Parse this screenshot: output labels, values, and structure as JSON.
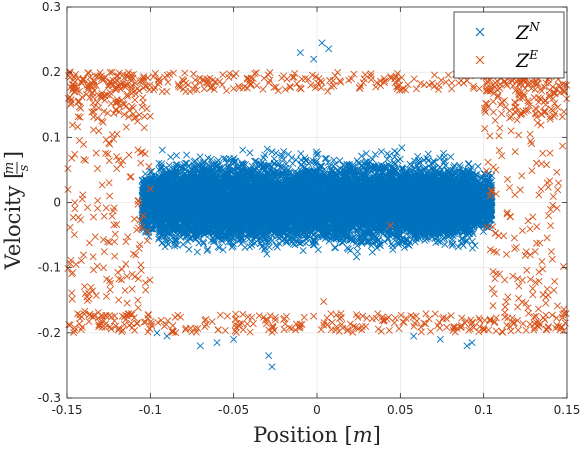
{
  "chart_data": {
    "type": "scatter",
    "title": "",
    "xlabel": "Position [m]",
    "xlabel_parts": {
      "text": "Position ",
      "open": "[",
      "unit": "m",
      "close": "]"
    },
    "ylabel": "Velocity [m/s]",
    "ylabel_parts": {
      "text": "Velocity ",
      "open": "[",
      "num": "m",
      "den": "s",
      "close": "]"
    },
    "xlim": [
      -0.15,
      0.15
    ],
    "ylim": [
      -0.3,
      0.3
    ],
    "xticks": [
      -0.15,
      -0.1,
      -0.05,
      0,
      0.05,
      0.1,
      0.15
    ],
    "xtick_labels": [
      "-0.15",
      "-0.1",
      "-0.05",
      "0",
      "0.05",
      "0.1",
      "0.15"
    ],
    "yticks": [
      -0.3,
      -0.2,
      -0.1,
      0,
      0.1,
      0.2,
      0.3
    ],
    "ytick_labels": [
      "-0.3",
      "-0.2",
      "-0.1",
      "0",
      "0.1",
      "0.2",
      "0.3"
    ],
    "grid": true,
    "legend_position": "top-right",
    "marker": "x",
    "series": [
      {
        "name": "Z^N",
        "label_base": "Z",
        "label_sup": "N",
        "color": "#0072BD",
        "n_points": 9000,
        "x_range": [
          -0.105,
          0.105
        ],
        "y_range": [
          -0.2,
          0.2
        ],
        "highlighted_points": [
          {
            "x": 0.003,
            "y": 0.245
          },
          {
            "x": 0.007,
            "y": 0.236
          },
          {
            "x": -0.002,
            "y": 0.22
          },
          {
            "x": -0.01,
            "y": 0.23
          },
          {
            "x": -0.029,
            "y": -0.235
          },
          {
            "x": -0.027,
            "y": -0.252
          },
          {
            "x": -0.06,
            "y": -0.215
          },
          {
            "x": -0.07,
            "y": -0.22
          },
          {
            "x": -0.05,
            "y": -0.21
          },
          {
            "x": 0.058,
            "y": -0.205
          },
          {
            "x": 0.074,
            "y": -0.21
          },
          {
            "x": 0.09,
            "y": -0.22
          },
          {
            "x": 0.093,
            "y": -0.215
          },
          {
            "x": -0.096,
            "y": -0.2
          },
          {
            "x": -0.09,
            "y": -0.205
          }
        ]
      },
      {
        "name": "Z^E",
        "label_base": "Z",
        "label_sup": "E",
        "color": "#D95319",
        "n_points": 1100,
        "x_range": [
          -0.15,
          0.15
        ],
        "y_range": [
          -0.2,
          0.2
        ],
        "regions": [
          "x < -0.1",
          "x > 0.1"
        ],
        "highlighted_points": [
          {
            "x": 0.044,
            "y": -0.035
          },
          {
            "x": 0.004,
            "y": -0.152
          },
          {
            "x": -0.148,
            "y": 0.2
          },
          {
            "x": 0.148,
            "y": 0.17
          },
          {
            "x": 0.149,
            "y": -0.185
          }
        ]
      }
    ]
  }
}
